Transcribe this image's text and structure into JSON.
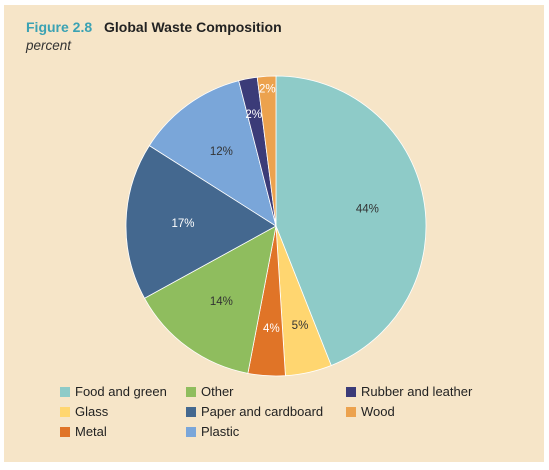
{
  "figure": {
    "number": "Figure 2.8",
    "title": "Global Waste Composition",
    "subtitle": "percent"
  },
  "chart_data": {
    "type": "pie",
    "title": "Global Waste Composition",
    "subtitle": "percent",
    "slices": [
      {
        "name": "Food and green",
        "value": 44,
        "label": "44%",
        "color": "#8ecbc8"
      },
      {
        "name": "Glass",
        "value": 5,
        "label": "5%",
        "color": "#ffd670"
      },
      {
        "name": "Metal",
        "value": 4,
        "label": "4%",
        "color": "#e07427"
      },
      {
        "name": "Other",
        "value": 14,
        "label": "14%",
        "color": "#8fbd5e"
      },
      {
        "name": "Paper and cardboard",
        "value": 17,
        "label": "17%",
        "color": "#44688f"
      },
      {
        "name": "Plastic",
        "value": 12,
        "label": "12%",
        "color": "#7aa6d9"
      },
      {
        "name": "Rubber and leather",
        "value": 2,
        "label": "2%",
        "color": "#3b3b78"
      },
      {
        "name": "Wood",
        "value": 2,
        "label": "2%",
        "color": "#eca24e"
      }
    ],
    "legend": {
      "placement": "bottom",
      "entries": [
        [
          "Food and green",
          "Other",
          "Rubber and leather"
        ],
        [
          "Glass",
          "Paper and cardboard",
          "Wood"
        ],
        [
          "Metal",
          "Plastic"
        ]
      ]
    }
  }
}
